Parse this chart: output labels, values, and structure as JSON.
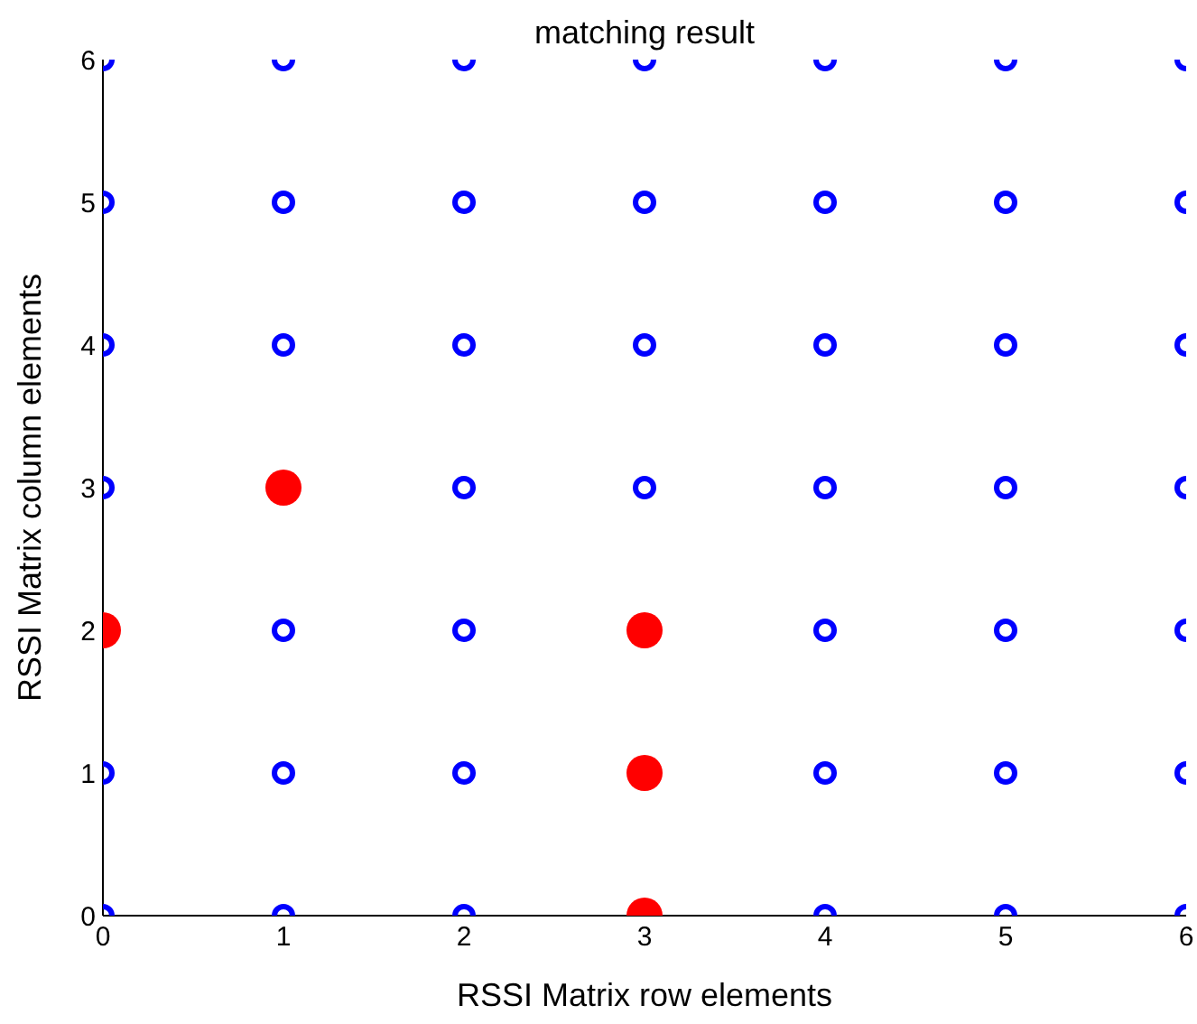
{
  "chart_data": {
    "type": "scatter",
    "title": "matching result",
    "xlabel": "RSSI Matrix row elements",
    "ylabel": "RSSI Matrix column elements",
    "xlim": [
      0,
      6
    ],
    "ylim": [
      0,
      6
    ],
    "xticks": [
      0,
      1,
      2,
      3,
      4,
      5,
      6
    ],
    "yticks": [
      0,
      1,
      2,
      3,
      4,
      5,
      6
    ],
    "grid": false,
    "legend": false,
    "marker": "circle",
    "series": [
      {
        "color": "#0000ff",
        "x": [
          0,
          0,
          0,
          0,
          0,
          0,
          1,
          1,
          1,
          1,
          1,
          1,
          2,
          2,
          2,
          2,
          2,
          2,
          2,
          3,
          3,
          3,
          3,
          4,
          4,
          4,
          4,
          4,
          4,
          4,
          5,
          5,
          5,
          5,
          5,
          5,
          5,
          6,
          6,
          6,
          6,
          6,
          6,
          6
        ],
        "values": [
          0,
          1,
          3,
          4,
          5,
          6,
          0,
          1,
          2,
          4,
          5,
          6,
          0,
          1,
          2,
          3,
          4,
          5,
          6,
          3,
          4,
          5,
          6,
          0,
          1,
          2,
          3,
          4,
          5,
          6,
          0,
          1,
          2,
          3,
          4,
          5,
          6,
          0,
          1,
          2,
          3,
          4,
          5,
          6
        ]
      },
      {
        "color": "#ff0000",
        "x": [
          0,
          1,
          3,
          3,
          3
        ],
        "values": [
          2,
          3,
          2,
          1,
          0
        ]
      }
    ]
  }
}
